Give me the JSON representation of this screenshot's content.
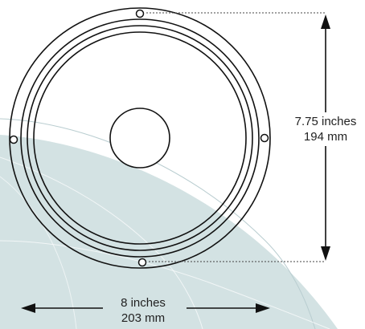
{
  "colors": {
    "line": "#111111",
    "leader": "#444444",
    "backdrop": "#d3e2e3",
    "backdrop_lines": "#b9cdd0",
    "text": "#222222"
  },
  "dimensions": {
    "height": {
      "imperial": "7.75 inches",
      "metric": "194 mm"
    },
    "width": {
      "imperial": "8 inches",
      "metric": "203 mm"
    }
  }
}
